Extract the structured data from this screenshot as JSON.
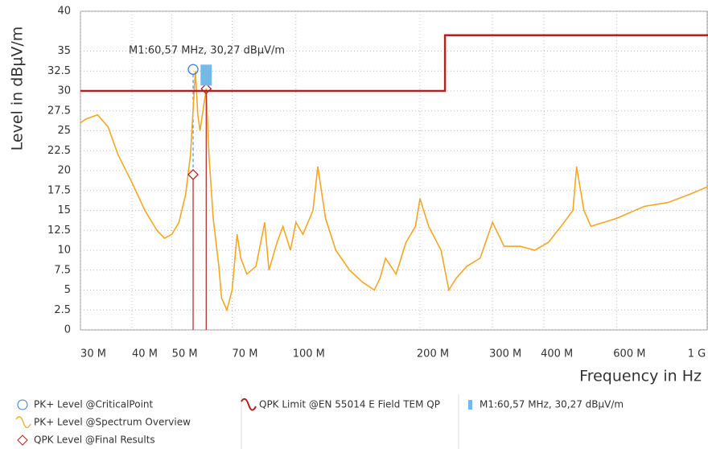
{
  "chart_data": {
    "type": "line",
    "xscale": "log",
    "grid": true,
    "ylabel": "Level in dBµV/m",
    "xlabel": "Frequency in Hz",
    "xlim": [
      30000000,
      1000000000
    ],
    "ylim": [
      0,
      40
    ],
    "yticks": [
      0,
      2.5,
      5,
      7.5,
      10,
      12.5,
      15,
      17.5,
      20,
      22.5,
      25,
      27.5,
      30,
      32.5,
      35,
      40
    ],
    "xticks": [
      {
        "value": 30000000,
        "label": "30 M"
      },
      {
        "value": 40000000,
        "label": "40 M"
      },
      {
        "value": 50000000,
        "label": "50 M"
      },
      {
        "value": 70000000,
        "label": "70 M"
      },
      {
        "value": 100000000,
        "label": "100 M"
      },
      {
        "value": 200000000,
        "label": "200 M"
      },
      {
        "value": 300000000,
        "label": "300 M"
      },
      {
        "value": 400000000,
        "label": "400 M"
      },
      {
        "value": 600000000,
        "label": "600 M"
      },
      {
        "value": 1000000000,
        "label": "1 G"
      }
    ],
    "series": [
      {
        "name": "PK+ Level @CriticalPoint",
        "type": "scatter",
        "marker": "circle",
        "color": "#3a7bd5",
        "x": [
          56300000
        ],
        "values": [
          32.7
        ]
      },
      {
        "name": "PK+ Level @Spectrum Overview",
        "type": "line",
        "color": "#f5a623",
        "x": [
          30000000,
          31000000,
          33000000,
          35000000,
          37000000,
          40000000,
          43000000,
          46000000,
          48000000,
          50000000,
          52000000,
          54000000,
          55500000,
          56500000,
          57000000,
          57800000,
          58500000,
          60600000,
          61500000,
          63000000,
          65000000,
          66000000,
          68000000,
          70000000,
          72000000,
          73500000,
          76000000,
          80000000,
          84000000,
          86000000,
          90000000,
          93000000,
          97000000,
          100000000,
          104000000,
          110000000,
          113000000,
          118000000,
          125000000,
          135000000,
          145000000,
          155000000,
          160000000,
          165000000,
          175000000,
          185000000,
          195000000,
          200000000,
          210000000,
          225000000,
          235000000,
          245000000,
          260000000,
          280000000,
          300000000,
          320000000,
          350000000,
          380000000,
          410000000,
          440000000,
          470000000,
          480000000,
          500000000,
          520000000,
          600000000,
          700000000,
          800000000,
          900000000,
          1000000000
        ],
        "values": [
          26,
          26.5,
          27,
          25.5,
          22,
          18.5,
          15,
          12.5,
          11.5,
          12,
          13.5,
          17,
          22,
          29,
          32.5,
          27,
          25,
          30.3,
          22,
          14,
          8,
          4,
          2.5,
          5,
          12,
          9,
          7,
          8,
          13.5,
          7.5,
          11,
          13,
          10,
          13.5,
          12,
          15,
          20.5,
          14,
          10,
          7.5,
          6,
          5,
          6.5,
          9,
          7,
          11,
          13,
          16.5,
          13,
          10,
          5,
          6.5,
          8,
          9,
          13.5,
          10.5,
          10.5,
          10,
          11,
          13,
          15,
          20.5,
          15,
          13,
          14,
          15.5,
          16,
          17,
          18
        ]
      },
      {
        "name": "QPK Level @Final Results",
        "type": "scatter",
        "marker": "diamond",
        "color": "#b22222",
        "x": [
          56300000,
          60570000
        ],
        "values": [
          19.5,
          30.27
        ]
      },
      {
        "name": "QPK Limit @EN 55014 E Field TEM QP",
        "type": "line",
        "color": "#b22222",
        "x": [
          30000000,
          230000000,
          230000000,
          1000000000
        ],
        "values": [
          30,
          30,
          37,
          37
        ]
      }
    ],
    "marker": {
      "label": "M1:60,57 MHz, 30,27 dBµV/m",
      "x": 60570000,
      "value": 30.27,
      "color": "#74b9e8"
    }
  }
}
